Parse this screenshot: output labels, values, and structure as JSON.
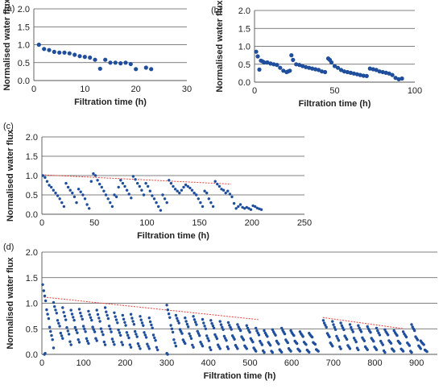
{
  "chart_data": [
    {
      "type": "scatter",
      "panel_label": "(a)",
      "xlabel": "Filtration time (h)",
      "ylabel": "Normalised water flux",
      "xlim": [
        0,
        30
      ],
      "ylim": [
        0,
        2.0
      ],
      "xticks": [
        0,
        10,
        20,
        30
      ],
      "xtick_labels": [
        "0",
        "10",
        "20",
        "30"
      ],
      "yticks": [
        0,
        0.5,
        1.0,
        1.5,
        2.0
      ],
      "ytick_labels": [
        "0.0",
        "0.5",
        "1.0",
        "1.5",
        "2.0"
      ],
      "grid": "horizontal",
      "marker_color": "#1f4e9c",
      "trend_color": "#e8403a",
      "series": [
        {
          "x": [
            1,
            2,
            3,
            4,
            5,
            6,
            7,
            8,
            9,
            10,
            11,
            12,
            13,
            14,
            15,
            16,
            17,
            18,
            19,
            20,
            22,
            23
          ],
          "y": [
            1.0,
            0.88,
            0.85,
            0.8,
            0.78,
            0.78,
            0.76,
            0.72,
            0.68,
            0.66,
            0.64,
            0.58,
            0.33,
            0.58,
            0.5,
            0.5,
            0.48,
            0.5,
            0.46,
            0.32,
            0.36,
            0.32
          ]
        }
      ],
      "trend_lines": []
    },
    {
      "type": "scatter",
      "panel_label": "(b)",
      "xlabel": "Filtration time (h)",
      "ylabel": "Normalised water flux",
      "xlim": [
        0,
        100
      ],
      "ylim": [
        0,
        2.0
      ],
      "xticks": [
        0,
        50,
        100
      ],
      "xtick_labels": [
        "0",
        "50",
        "100"
      ],
      "yticks": [
        0,
        0.5,
        1.0,
        1.5,
        2.0
      ],
      "ytick_labels": [
        "0.0",
        "0.5",
        "1.0",
        "1.5",
        "2.0"
      ],
      "grid": "horizontal",
      "marker_color": "#1f4e9c",
      "trend_color": "#e8403a",
      "series": [
        {
          "x": [
            1,
            2,
            3,
            4,
            5,
            6,
            8,
            10,
            12,
            14,
            16,
            18,
            20,
            21,
            22,
            23,
            24,
            26,
            28,
            30,
            32,
            34,
            36,
            38,
            40,
            42,
            44,
            46,
            47,
            48,
            50,
            52,
            54,
            56,
            58,
            60,
            62,
            64,
            66,
            68,
            70,
            72,
            74,
            76,
            78,
            80,
            82,
            84,
            86,
            88,
            90,
            92
          ],
          "y": [
            0.85,
            0.72,
            0.35,
            0.6,
            0.58,
            0.55,
            0.55,
            0.52,
            0.5,
            0.48,
            0.4,
            0.32,
            0.28,
            0.3,
            0.32,
            0.75,
            0.62,
            0.5,
            0.48,
            0.45,
            0.42,
            0.4,
            0.38,
            0.36,
            0.34,
            0.3,
            0.28,
            0.66,
            0.62,
            0.55,
            0.45,
            0.4,
            0.34,
            0.3,
            0.28,
            0.26,
            0.24,
            0.22,
            0.2,
            0.18,
            0.17,
            0.38,
            0.36,
            0.34,
            0.3,
            0.28,
            0.26,
            0.24,
            0.2,
            0.12,
            0.08,
            0.1
          ]
        }
      ],
      "trend_lines": []
    },
    {
      "type": "scatter",
      "panel_label": "(c)",
      "xlabel": "Filtration time (h)",
      "ylabel": "Normalised water flux",
      "xlim": [
        0,
        250
      ],
      "ylim": [
        0,
        2.0
      ],
      "xticks": [
        0,
        50,
        100,
        150,
        200,
        250
      ],
      "xtick_labels": [
        "0",
        "50",
        "100",
        "150",
        "200",
        "250"
      ],
      "yticks": [
        0,
        0.5,
        1.0,
        1.5,
        2.0
      ],
      "ytick_labels": [
        "0.0",
        "0.5",
        "1.0",
        "1.5",
        "2.0"
      ],
      "grid": "horizontal",
      "marker_color": "#1f4e9c",
      "trend_color": "#e8403a",
      "series": [
        {
          "x": [
            1,
            3,
            5,
            7,
            9,
            11,
            13,
            15,
            17,
            19,
            21,
            23,
            25,
            27,
            29,
            31,
            33,
            35,
            37,
            39,
            41,
            43,
            45,
            47,
            49,
            51,
            53,
            55,
            57,
            59,
            61,
            63,
            65,
            67,
            69,
            71,
            73,
            75,
            77,
            79,
            81,
            83,
            85,
            87,
            89,
            91,
            93,
            95,
            97,
            99,
            101,
            103,
            105,
            107,
            109,
            111,
            113,
            115,
            117,
            119,
            121,
            123,
            125,
            127,
            129,
            131,
            133,
            135,
            137,
            139,
            141,
            143,
            145,
            147,
            149,
            151,
            153,
            155,
            157,
            159,
            161,
            163,
            165,
            167,
            169,
            171,
            173,
            175,
            177,
            179,
            181,
            183,
            185,
            187,
            189,
            191,
            193,
            195,
            197,
            199,
            201,
            203,
            205,
            207,
            209
          ],
          "y": [
            1.0,
            0.95,
            0.85,
            0.75,
            0.7,
            0.62,
            0.55,
            0.48,
            0.4,
            0.3,
            0.2,
            0.8,
            0.7,
            0.62,
            0.55,
            0.45,
            0.3,
            0.65,
            0.58,
            0.5,
            0.4,
            0.25,
            0.15,
            0.85,
            1.05,
            1.0,
            0.88,
            0.78,
            0.7,
            0.6,
            0.5,
            0.4,
            0.3,
            0.2,
            0.5,
            0.45,
            0.7,
            0.88,
            0.8,
            0.72,
            0.62,
            0.52,
            0.42,
            0.98,
            0.9,
            0.8,
            0.72,
            0.62,
            0.5,
            0.8,
            0.72,
            0.6,
            0.48,
            0.4,
            0.3,
            0.2,
            0.1,
            0.5,
            0.4,
            0.3,
            0.88,
            0.8,
            0.72,
            0.65,
            0.6,
            0.55,
            0.62,
            0.7,
            0.76,
            0.72,
            0.68,
            0.62,
            0.55,
            0.5,
            0.4,
            0.3,
            0.2,
            0.6,
            0.55,
            0.4,
            0.3,
            0.2,
            0.85,
            0.78,
            0.72,
            0.65,
            0.62,
            0.55,
            0.6,
            0.52,
            0.45,
            0.28,
            0.15,
            0.2,
            0.25,
            0.18,
            0.15,
            0.18,
            0.15,
            0.12,
            0.22,
            0.2,
            0.16,
            0.14,
            0.12
          ],
          "xs_note": ""
        }
      ],
      "trend_lines": [
        {
          "x": [
            0,
            180
          ],
          "y": [
            1.02,
            0.78
          ]
        }
      ]
    },
    {
      "type": "scatter",
      "panel_label": "(d)",
      "xlabel": "Filtration time (h)",
      "ylabel": "Normalised water flux",
      "xlim": [
        0,
        950
      ],
      "ylim": [
        0,
        2.0
      ],
      "xticks": [
        0,
        100,
        200,
        300,
        400,
        500,
        600,
        700,
        800,
        900
      ],
      "xtick_labels": [
        "0",
        "100",
        "200",
        "300",
        "400",
        "500",
        "600",
        "700",
        "800",
        "900"
      ],
      "yticks": [
        0,
        0.5,
        1.0,
        1.5,
        2.0
      ],
      "ytick_labels": [
        "0.0",
        "0.5",
        "1.0",
        "1.5",
        "2.0"
      ],
      "grid": "horizontal",
      "marker_color": "#1f4e9c",
      "trend_color": "#e8403a",
      "series": [
        {
          "cycles": [
            {
              "t0": 2,
              "len": 26,
              "y0": 1.4,
              "y1": 0.15
            },
            {
              "t0": 28,
              "len": 22,
              "y0": 1.05,
              "y1": 0.3
            },
            {
              "t0": 50,
              "len": 20,
              "y0": 0.95,
              "y1": 0.2
            },
            {
              "t0": 70,
              "len": 20,
              "y0": 0.9,
              "y1": 0.25
            },
            {
              "t0": 90,
              "len": 22,
              "y0": 0.92,
              "y1": 0.2
            },
            {
              "t0": 112,
              "len": 20,
              "y0": 0.88,
              "y1": 0.28
            },
            {
              "t0": 132,
              "len": 20,
              "y0": 0.9,
              "y1": 0.2
            },
            {
              "t0": 152,
              "len": 22,
              "y0": 0.95,
              "y1": 0.18
            },
            {
              "t0": 174,
              "len": 20,
              "y0": 0.85,
              "y1": 0.2
            },
            {
              "t0": 194,
              "len": 20,
              "y0": 0.8,
              "y1": 0.15
            },
            {
              "t0": 214,
              "len": 22,
              "y0": 0.82,
              "y1": 0.1
            },
            {
              "t0": 236,
              "len": 22,
              "y0": 0.78,
              "y1": 0.1
            },
            {
              "t0": 258,
              "len": 20,
              "y0": 0.75,
              "y1": 0.1
            },
            {
              "t0": 300,
              "len": 22,
              "y0": 1.0,
              "y1": 0.15
            },
            {
              "t0": 322,
              "len": 22,
              "y0": 0.8,
              "y1": 0.2
            },
            {
              "t0": 344,
              "len": 20,
              "y0": 0.75,
              "y1": 0.15
            },
            {
              "t0": 364,
              "len": 22,
              "y0": 0.78,
              "y1": 0.15
            },
            {
              "t0": 386,
              "len": 20,
              "y0": 0.72,
              "y1": 0.1
            },
            {
              "t0": 406,
              "len": 22,
              "y0": 0.7,
              "y1": 0.1
            },
            {
              "t0": 428,
              "len": 20,
              "y0": 0.68,
              "y1": 0.12
            },
            {
              "t0": 448,
              "len": 22,
              "y0": 0.66,
              "y1": 0.1
            },
            {
              "t0": 470,
              "len": 22,
              "y0": 0.62,
              "y1": 0.1
            },
            {
              "t0": 492,
              "len": 22,
              "y0": 0.6,
              "y1": 0.05
            },
            {
              "t0": 514,
              "len": 20,
              "y0": 0.55,
              "y1": 0.05
            },
            {
              "t0": 534,
              "len": 20,
              "y0": 0.5,
              "y1": 0.05
            },
            {
              "t0": 554,
              "len": 22,
              "y0": 0.52,
              "y1": 0.03
            },
            {
              "t0": 576,
              "len": 22,
              "y0": 0.55,
              "y1": 0.05
            },
            {
              "t0": 598,
              "len": 22,
              "y0": 0.5,
              "y1": 0.05
            },
            {
              "t0": 620,
              "len": 22,
              "y0": 0.48,
              "y1": 0.03
            },
            {
              "t0": 642,
              "len": 22,
              "y0": 0.45,
              "y1": 0.05
            },
            {
              "t0": 676,
              "len": 22,
              "y0": 0.7,
              "y1": 0.15
            },
            {
              "t0": 698,
              "len": 20,
              "y0": 0.68,
              "y1": 0.12
            },
            {
              "t0": 718,
              "len": 22,
              "y0": 0.65,
              "y1": 0.1
            },
            {
              "t0": 740,
              "len": 20,
              "y0": 0.62,
              "y1": 0.1
            },
            {
              "t0": 760,
              "len": 22,
              "y0": 0.6,
              "y1": 0.08
            },
            {
              "t0": 782,
              "len": 22,
              "y0": 0.58,
              "y1": 0.08
            },
            {
              "t0": 804,
              "len": 20,
              "y0": 0.55,
              "y1": 0.05
            },
            {
              "t0": 824,
              "len": 22,
              "y0": 0.52,
              "y1": 0.05
            },
            {
              "t0": 846,
              "len": 22,
              "y0": 0.5,
              "y1": 0.05
            },
            {
              "t0": 868,
              "len": 20,
              "y0": 0.48,
              "y1": 0.05
            },
            {
              "t0": 888,
              "len": 22,
              "y0": 0.62,
              "y1": 0.1
            },
            {
              "t0": 910,
              "len": 15,
              "y0": 0.3,
              "y1": 0.03
            }
          ],
          "extra_points": {
            "x": [
              6,
              8,
              300,
              302
            ],
            "y": [
              0.0,
              0.02,
              0.02,
              0.0
            ]
          }
        }
      ],
      "trend_lines": [
        {
          "x": [
            5,
            520
          ],
          "y": [
            1.12,
            0.68
          ]
        },
        {
          "x": [
            675,
            870
          ],
          "y": [
            0.72,
            0.5
          ]
        }
      ]
    }
  ]
}
